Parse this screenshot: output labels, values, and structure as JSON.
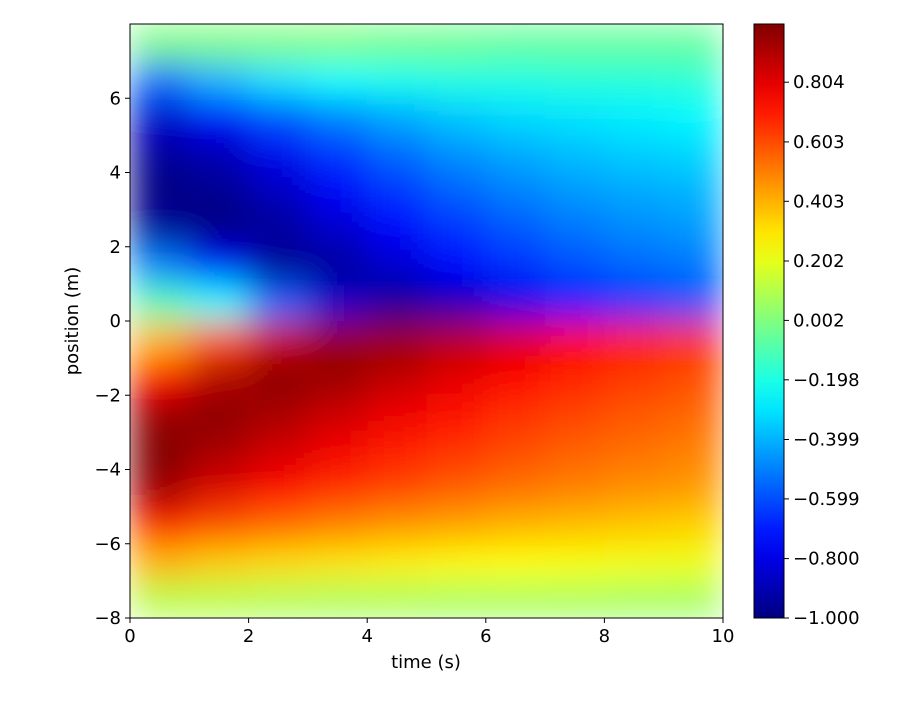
{
  "chart_data": {
    "type": "heatmap",
    "colormap": "jet",
    "xlabel": "time (s)",
    "ylabel": "position (m)",
    "xbins": [
      0,
      1,
      2,
      3,
      4,
      5,
      6,
      7,
      8,
      9,
      10
    ],
    "ybins": [
      -8,
      -7,
      -6,
      -5,
      -4,
      -3,
      -2,
      -1,
      0,
      1,
      2,
      3,
      4,
      5,
      6,
      7,
      8
    ],
    "z": [
      [
        0.1,
        0.1,
        0.09,
        0.08,
        0.08,
        0.07,
        0.07,
        0.07,
        0.06,
        0.06
      ],
      [
        0.4,
        0.35,
        0.32,
        0.3,
        0.28,
        0.26,
        0.25,
        0.24,
        0.23,
        0.22
      ],
      [
        0.7,
        0.6,
        0.55,
        0.5,
        0.46,
        0.43,
        0.4,
        0.38,
        0.36,
        0.34
      ],
      [
        0.95,
        0.82,
        0.74,
        0.67,
        0.62,
        0.57,
        0.53,
        0.5,
        0.47,
        0.45
      ],
      [
        1.0,
        0.92,
        0.84,
        0.77,
        0.7,
        0.65,
        0.6,
        0.56,
        0.53,
        0.5
      ],
      [
        0.95,
        0.98,
        0.92,
        0.85,
        0.78,
        0.72,
        0.66,
        0.62,
        0.58,
        0.55
      ],
      [
        0.75,
        0.9,
        0.98,
        0.95,
        0.88,
        0.8,
        0.74,
        0.68,
        0.64,
        0.6
      ],
      [
        0.4,
        0.6,
        0.85,
        0.95,
        0.95,
        0.9,
        0.82,
        0.75,
        0.7,
        0.65
      ],
      [
        -0.1,
        -0.25,
        -0.55,
        -0.85,
        -0.95,
        -0.9,
        -0.8,
        -0.72,
        -0.66,
        -0.6
      ],
      [
        -0.5,
        -0.75,
        -0.95,
        -0.95,
        -0.85,
        -0.75,
        -0.67,
        -0.6,
        -0.55,
        -0.52
      ],
      [
        -0.95,
        -1.0,
        -0.95,
        -0.85,
        -0.75,
        -0.65,
        -0.58,
        -0.52,
        -0.48,
        -0.45
      ],
      [
        -1.0,
        -0.97,
        -0.88,
        -0.76,
        -0.65,
        -0.56,
        -0.5,
        -0.45,
        -0.42,
        -0.4
      ],
      [
        -0.95,
        -0.9,
        -0.78,
        -0.65,
        -0.55,
        -0.47,
        -0.42,
        -0.38,
        -0.35,
        -0.33
      ],
      [
        -0.85,
        -0.75,
        -0.6,
        -0.5,
        -0.42,
        -0.36,
        -0.32,
        -0.3,
        -0.28,
        -0.26
      ],
      [
        -0.55,
        -0.4,
        -0.3,
        -0.25,
        -0.22,
        -0.2,
        -0.2,
        -0.18,
        -0.18,
        -0.17
      ],
      [
        0.0,
        0.0,
        0.0,
        0.0,
        -0.02,
        -0.03,
        -0.05,
        -0.05,
        -0.05,
        -0.05
      ]
    ],
    "xlim": [
      0,
      10
    ],
    "xticks": [
      0,
      2,
      4,
      6,
      8,
      10
    ],
    "ylim": [
      -8,
      8
    ],
    "yticks": [
      {
        "value": -8,
        "label": "−8"
      },
      {
        "value": -6,
        "label": "−6"
      },
      {
        "value": -4,
        "label": "−4"
      },
      {
        "value": -2,
        "label": "−2"
      },
      0,
      2,
      4,
      6
    ],
    "clim": [
      -1,
      1
    ],
    "cticks": [
      {
        "value": -1.0,
        "label": "−1.000"
      },
      {
        "value": -0.8,
        "label": "−0.800"
      },
      {
        "value": -0.599,
        "label": "−0.599"
      },
      {
        "value": -0.399,
        "label": "−0.399"
      },
      {
        "value": -0.198,
        "label": "−0.198"
      },
      {
        "value": 0.002,
        "label": "0.002"
      },
      {
        "value": 0.202,
        "label": "0.202"
      },
      {
        "value": 0.403,
        "label": "0.403"
      },
      {
        "value": 0.603,
        "label": "0.603"
      },
      {
        "value": 0.804,
        "label": "0.804"
      }
    ]
  }
}
